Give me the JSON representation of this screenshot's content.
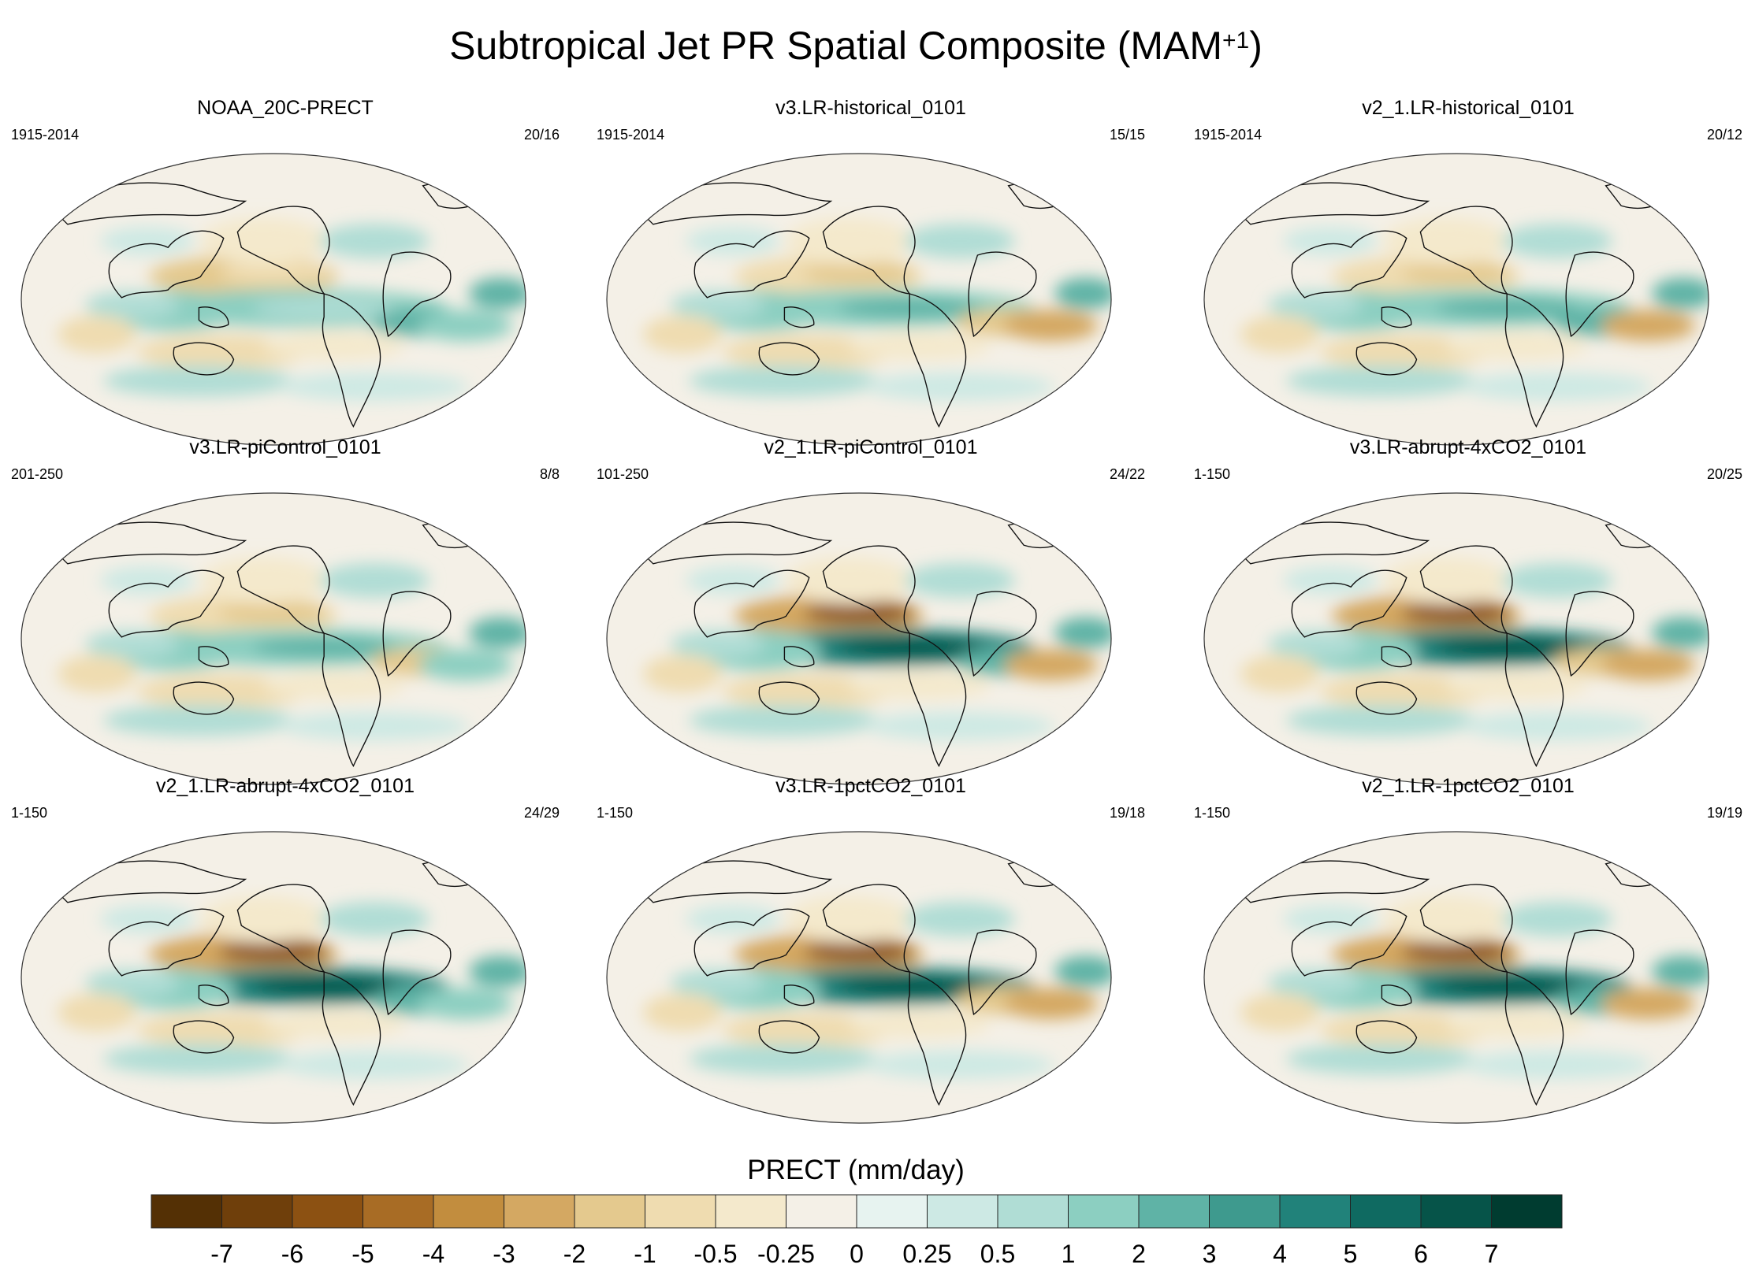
{
  "figure": {
    "title": "Subtropical Jet PR Spatial Composite (MAM",
    "title_sup": "+1",
    "title_end": ")"
  },
  "panels": [
    {
      "title": "NOAA_20C-PRECT",
      "range": "1915-2014",
      "count": "20/16"
    },
    {
      "title": "v3.LR-historical_0101",
      "range": "1915-2014",
      "count": "15/15"
    },
    {
      "title": "v2_1.LR-historical_0101",
      "range": "1915-2014",
      "count": "20/12"
    },
    {
      "title": "v3.LR-piControl_0101",
      "range": "201-250",
      "count": "8/8"
    },
    {
      "title": "v2_1.LR-piControl_0101",
      "range": "101-250",
      "count": "24/22"
    },
    {
      "title": "v3.LR-abrupt-4xCO2_0101",
      "range": "1-150",
      "count": "20/25"
    },
    {
      "title": "v2_1.LR-abrupt-4xCO2_0101",
      "range": "1-150",
      "count": "24/29"
    },
    {
      "title": "v3.LR-1pctCO2_0101",
      "range": "1-150",
      "count": "19/18"
    },
    {
      "title": "v2_1.LR-1pctCO2_0101",
      "range": "1-150",
      "count": "19/19"
    }
  ],
  "chart_data": {
    "type": "heatmap",
    "title": "Subtropical Jet PR Spatial Composite (MAM+1)",
    "colorbar_label": "PRECT (mm/day)",
    "levels": [
      "-7",
      "-6",
      "-5",
      "-4",
      "-3",
      "-2",
      "-1",
      "-0.5",
      "-0.25",
      "0",
      "0.25",
      "0.5",
      "1",
      "2",
      "3",
      "4",
      "5",
      "6",
      "7"
    ],
    "colors": [
      "#543005",
      "#6f3f0b",
      "#8c5112",
      "#a86c25",
      "#c28d3e",
      "#d4a862",
      "#e4c98e",
      "#efdcb0",
      "#f4e9cc",
      "#f4f0e7",
      "#e7f3f0",
      "#cde9e4",
      "#b0ddd5",
      "#8ccfc1",
      "#5fb3a6",
      "#3e9a8e",
      "#21827a",
      "#0f6a61",
      "#065449",
      "#003c30"
    ],
    "panel_titles": [
      "NOAA_20C-PRECT",
      "v3.LR-historical_0101",
      "v2_1.LR-historical_0101",
      "v3.LR-piControl_0101",
      "v2_1.LR-piControl_0101",
      "v3.LR-abrupt-4xCO2_0101",
      "v2_1.LR-abrupt-4xCO2_0101",
      "v3.LR-1pctCO2_0101",
      "v2_1.LR-1pctCO2_0101"
    ],
    "projection": "robinson-like, Pacific-centered"
  }
}
